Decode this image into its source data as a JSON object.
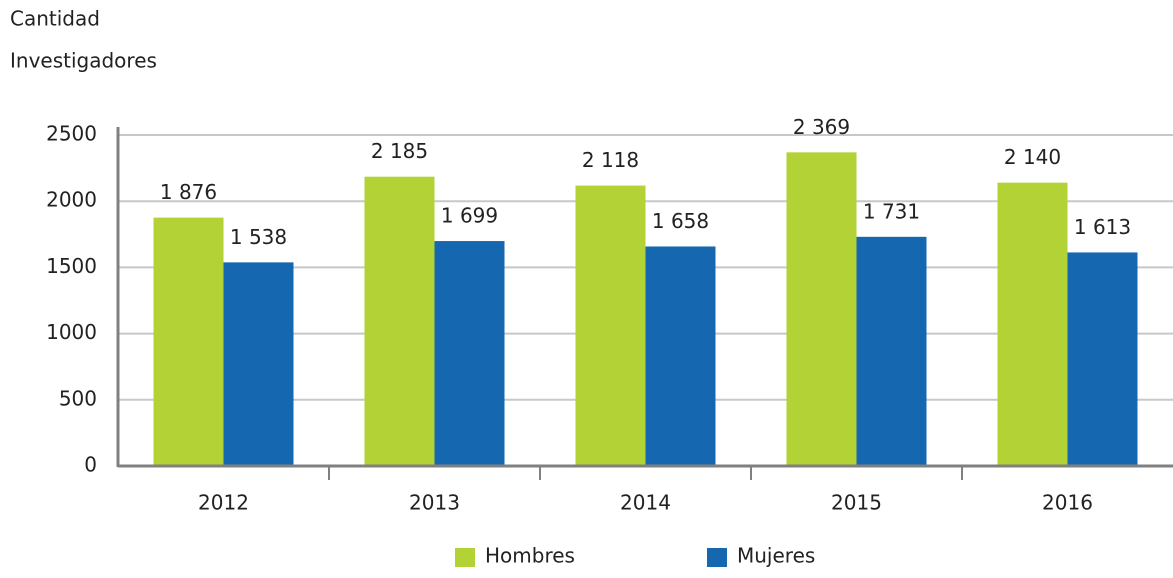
{
  "chart_data": {
    "type": "bar",
    "ylabel_lines": [
      "Cantidad",
      "Investigadores"
    ],
    "categories": [
      "2012",
      "2013",
      "2014",
      "2015",
      "2016"
    ],
    "series": [
      {
        "name": "Hombres",
        "color": "#b2d235",
        "values": [
          1876,
          2185,
          2118,
          2369,
          2140
        ],
        "value_labels": [
          "1 876",
          "2 185",
          "2 118",
          "2 369",
          "2 140"
        ]
      },
      {
        "name": "Mujeres",
        "color": "#1568b0",
        "values": [
          1538,
          1699,
          1658,
          1731,
          1613
        ],
        "value_labels": [
          "1 538",
          "1 699",
          "1 658",
          "1 731",
          "1 613"
        ]
      }
    ],
    "ylim": [
      0,
      2500
    ],
    "yticks": [
      0,
      500,
      1000,
      1500,
      2000,
      2500
    ],
    "grid": true,
    "legend": "bottom"
  }
}
